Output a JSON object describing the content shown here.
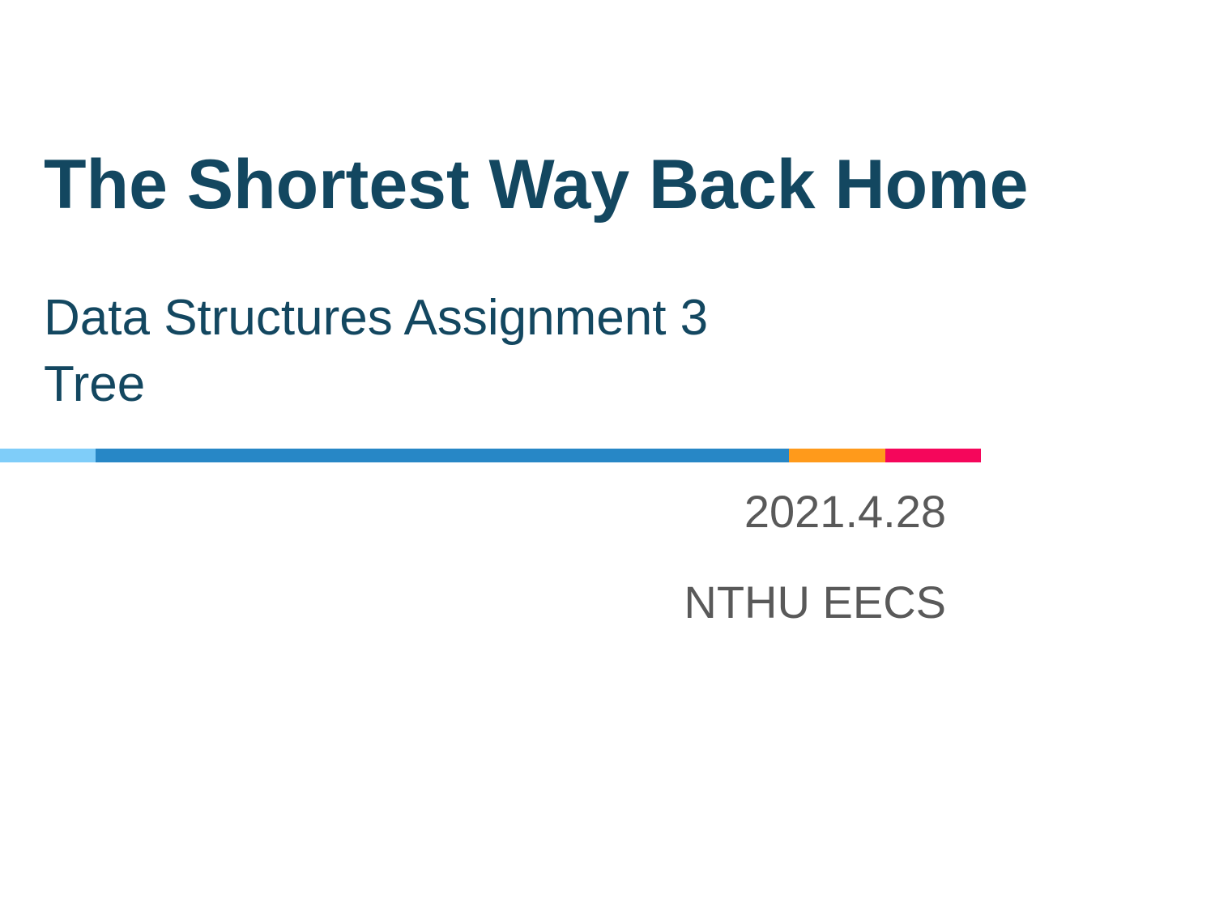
{
  "slide": {
    "title": "The Shortest Way Back Home",
    "subtitle_line1": "Data Structures Assignment 3",
    "subtitle_line2": "Tree",
    "date": "2021.4.28",
    "organization": "NTHU EECS"
  },
  "colors": {
    "title": "#134760",
    "meta_text": "#595959",
    "bar_light_blue": "#7fcdf9",
    "bar_blue": "#2787c6",
    "bar_orange": "#ff9a1b",
    "bar_pink": "#f5065b"
  }
}
